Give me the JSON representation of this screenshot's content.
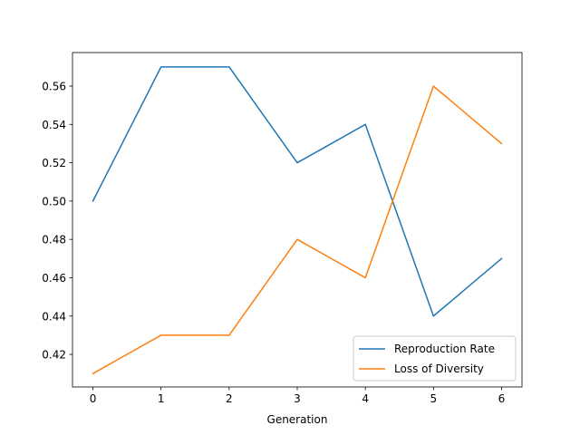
{
  "chart_data": {
    "type": "line",
    "title": "",
    "xlabel": "Generation",
    "ylabel": "",
    "x": [
      0,
      1,
      2,
      3,
      4,
      5,
      6
    ],
    "xticks": [
      "0",
      "1",
      "2",
      "3",
      "4",
      "5",
      "6"
    ],
    "yticks": [
      "0.42",
      "0.44",
      "0.46",
      "0.48",
      "0.50",
      "0.52",
      "0.54",
      "0.56"
    ],
    "xlim": [
      -0.3,
      6.3
    ],
    "ylim": [
      0.403,
      0.5775
    ],
    "grid": false,
    "legend_position": "lower-right",
    "series": [
      {
        "name": "Reproduction Rate",
        "color": "#1f77b4",
        "values": [
          0.5,
          0.57,
          0.57,
          0.52,
          0.54,
          0.44,
          0.47
        ]
      },
      {
        "name": "Loss of Diversity",
        "color": "#ff7f0e",
        "values": [
          0.41,
          0.43,
          0.43,
          0.48,
          0.46,
          0.56,
          0.53
        ]
      }
    ]
  }
}
